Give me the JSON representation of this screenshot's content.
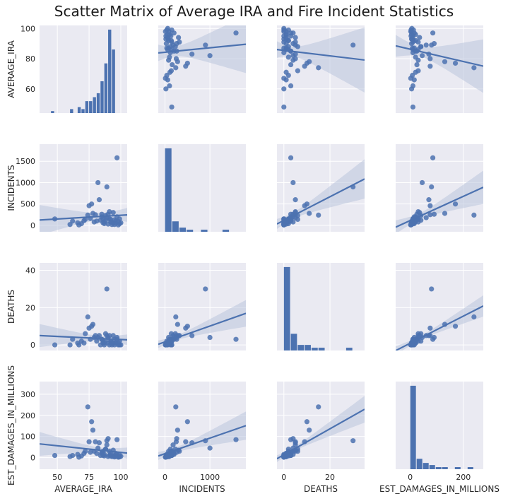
{
  "chart_data": {
    "type": "scatter",
    "title": "Scatter Matrix of Average IRA and Fire Incident Statistics",
    "variables": [
      "AVERAGE_IRA",
      "INCIDENTS",
      "DEATHS",
      "EST_DAMAGES_IN_MILLIONS"
    ],
    "layout": "4x4 pair plot: histograms on diagonal, scatter with linear regression line and confidence band off-diagonal",
    "grid": true,
    "colors": {
      "marker": "#4c72b0",
      "band": "#b9c4dc",
      "panel": "#eaeaf2",
      "grid": "#ffffff"
    },
    "axes": {
      "AVERAGE_IRA": {
        "range": [
          36,
          105
        ],
        "ticks": [
          50,
          75,
          100
        ]
      },
      "INCIDENTS": {
        "range": [
          -150,
          1800
        ],
        "ticks": [
          0,
          1000
        ]
      },
      "DEATHS": {
        "range": [
          -3,
          35
        ],
        "ticks": [
          0,
          20
        ]
      },
      "EST_DAMAGES_IN_MILLIONS": {
        "range": [
          -55,
          275
        ],
        "ticks": [
          0,
          200
        ]
      }
    },
    "row_ranges": {
      "AVERAGE_IRA": {
        "range": [
          44,
          102
        ],
        "ticks": [
          60,
          80,
          100
        ]
      },
      "INCIDENTS": {
        "range": [
          -150,
          1900
        ],
        "ticks": [
          0,
          500,
          1000,
          1500
        ]
      },
      "DEATHS": {
        "range": [
          -3,
          44
        ],
        "ticks": [
          0,
          20,
          40
        ]
      },
      "EST_DAMAGES_IN_MILLIONS": {
        "range": [
          -55,
          360
        ],
        "ticks": [
          0,
          100,
          200,
          300
        ]
      }
    },
    "records": [
      [
        48,
        150,
        0,
        10
      ],
      [
        60,
        20,
        0,
        5
      ],
      [
        62,
        100,
        3,
        10
      ],
      [
        66,
        60,
        1,
        15
      ],
      [
        67,
        10,
        0,
        2
      ],
      [
        69,
        40,
        2,
        8
      ],
      [
        71,
        110,
        1,
        20
      ],
      [
        72,
        140,
        6,
        30
      ],
      [
        74,
        240,
        15,
        240
      ],
      [
        75,
        460,
        9,
        75
      ],
      [
        76,
        160,
        3,
        25
      ],
      [
        77,
        500,
        10,
        170
      ],
      [
        78,
        280,
        11,
        130
      ],
      [
        79,
        80,
        4,
        30
      ],
      [
        80,
        250,
        5,
        75
      ],
      [
        81,
        100,
        2,
        20
      ],
      [
        82,
        1000,
        4,
        45
      ],
      [
        83,
        600,
        5,
        70
      ],
      [
        84,
        120,
        0,
        10
      ],
      [
        85,
        200,
        3,
        20
      ],
      [
        85,
        260,
        3,
        25
      ],
      [
        86,
        60,
        1,
        10
      ],
      [
        86,
        150,
        2,
        30
      ],
      [
        87,
        40,
        0,
        15
      ],
      [
        87,
        80,
        1,
        8
      ],
      [
        88,
        120,
        2,
        40
      ],
      [
        88,
        230,
        6,
        40
      ],
      [
        89,
        900,
        30,
        80
      ],
      [
        89,
        180,
        5,
        60
      ],
      [
        90,
        260,
        4,
        90
      ],
      [
        90,
        30,
        1,
        5
      ],
      [
        91,
        150,
        0,
        10
      ],
      [
        91,
        320,
        5,
        30
      ],
      [
        92,
        80,
        2,
        12
      ],
      [
        92,
        140,
        2,
        20
      ],
      [
        93,
        20,
        0,
        5
      ],
      [
        93,
        70,
        1,
        6
      ],
      [
        94,
        300,
        5,
        35
      ],
      [
        94,
        60,
        1,
        8
      ],
      [
        95,
        130,
        3,
        10
      ],
      [
        95,
        20,
        0,
        3
      ],
      [
        96,
        100,
        1,
        20
      ],
      [
        96,
        50,
        1,
        5
      ],
      [
        97,
        1580,
        3,
        85
      ],
      [
        97,
        200,
        4,
        15
      ],
      [
        98,
        10,
        0,
        2
      ],
      [
        98,
        90,
        1,
        4
      ],
      [
        99,
        40,
        0,
        3
      ],
      [
        99,
        150,
        2,
        12
      ],
      [
        100,
        60,
        0,
        6
      ]
    ],
    "histograms": {
      "AVERAGE_IRA": {
        "bins": [
          [
            45,
            48
          ],
          [
            48,
            51
          ],
          [
            51,
            54
          ],
          [
            54,
            57
          ],
          [
            57,
            60
          ],
          [
            60,
            63
          ],
          [
            63,
            66
          ],
          [
            66,
            69
          ],
          [
            69,
            72
          ],
          [
            72,
            75
          ],
          [
            75,
            78
          ],
          [
            78,
            81
          ],
          [
            81,
            84
          ],
          [
            84,
            87
          ],
          [
            87,
            90
          ],
          [
            90,
            93
          ],
          [
            93,
            96
          ],
          [
            96,
            99
          ]
        ],
        "counts": [
          1,
          0,
          0,
          0,
          0,
          2,
          0,
          3,
          2,
          6,
          6,
          8,
          10,
          16,
          25,
          42,
          32,
          0
        ]
      },
      "INCIDENTS": {
        "bins": [
          [
            0,
            160
          ],
          [
            160,
            320
          ],
          [
            320,
            480
          ],
          [
            480,
            640
          ],
          [
            640,
            800
          ],
          [
            800,
            960
          ],
          [
            960,
            1120
          ],
          [
            1120,
            1280
          ],
          [
            1280,
            1440
          ],
          [
            1440,
            1600
          ]
        ],
        "counts": [
          40,
          5,
          2,
          1,
          0,
          1,
          0,
          0,
          1,
          0
        ]
      },
      "DEATHS": {
        "bins": [
          [
            0,
            3
          ],
          [
            3,
            6
          ],
          [
            6,
            9
          ],
          [
            9,
            12
          ],
          [
            12,
            15
          ],
          [
            15,
            18
          ],
          [
            18,
            21
          ],
          [
            21,
            24
          ],
          [
            24,
            27
          ],
          [
            27,
            30
          ]
        ],
        "counts": [
          30,
          6,
          2,
          2,
          1,
          1,
          0,
          0,
          0,
          1
        ]
      },
      "EST_DAMAGES_IN_MILLIONS": {
        "bins": [
          [
            0,
            24
          ],
          [
            24,
            48
          ],
          [
            48,
            72
          ],
          [
            72,
            96
          ],
          [
            96,
            120
          ],
          [
            120,
            144
          ],
          [
            144,
            168
          ],
          [
            168,
            192
          ],
          [
            192,
            216
          ],
          [
            216,
            240
          ]
        ],
        "counts": [
          40,
          5,
          3,
          2,
          1,
          1,
          0,
          1,
          0,
          1
        ]
      }
    }
  }
}
